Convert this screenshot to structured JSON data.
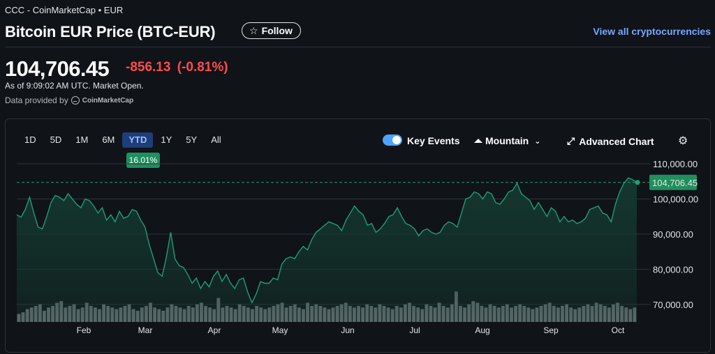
{
  "header": {
    "breadcrumb": "CCC - CoinMarketCap • EUR",
    "title": "Bitcoin EUR Price (BTC-EUR)",
    "follow_label": "Follow",
    "view_all": "View all cryptocurrencies"
  },
  "quote": {
    "price": "104,706.45",
    "change": "-856.13 (-0.81%)",
    "as_of": "As of 9:09:02 AM UTC. Market Open.",
    "provided_by": "Data provided by",
    "provider": "CoinMarketCap"
  },
  "toolbar": {
    "ranges": [
      "1D",
      "5D",
      "1M",
      "6M",
      "YTD",
      "1Y",
      "5Y",
      "All"
    ],
    "selected_range": "YTD",
    "ytd_change": "16.01%",
    "key_events_label": "Key Events",
    "key_events_on": true,
    "chart_type_label": "Mountain",
    "advanced_label": "Advanced Chart"
  },
  "colors": {
    "line": "#1f9e74",
    "area": "#143a30",
    "negative": "#ff4d4d",
    "link": "#7aa7ff",
    "last_price_badge": "#1f8f5e"
  },
  "chart_data": {
    "type": "area",
    "x_labels": [
      "Feb",
      "Mar",
      "Apr",
      "May",
      "Jun",
      "Jul",
      "Aug",
      "Sep",
      "Oct"
    ],
    "y_ticks": [
      "110,000.00",
      "100,000.00",
      "90,000.00",
      "80,000.00",
      "70,000.00"
    ],
    "ylim": [
      65000,
      112000
    ],
    "last_value_label": "104,706.45",
    "last_value": 104706.45,
    "series": [
      {
        "values": [
          95500,
          94800,
          97000,
          100500,
          96000,
          92000,
          91500,
          95000,
          99000,
          101000,
          100500,
          99500,
          101500,
          100000,
          98500,
          97500,
          100000,
          99500,
          98000,
          96000,
          97500,
          94000,
          95500,
          93500,
          96500,
          94500,
          95000,
          97000,
          96500,
          94000,
          92000,
          87000,
          83000,
          79000,
          78000,
          83500,
          90500,
          83000,
          81000,
          80500,
          78500,
          76000,
          77500,
          74500,
          76500,
          75000,
          78000,
          79500,
          76500,
          78500,
          76000,
          74500,
          77000,
          77500,
          73500,
          70500,
          73000,
          76500,
          76000,
          76000,
          77500,
          77000,
          81500,
          83000,
          83500,
          83000,
          85000,
          86500,
          85500,
          88500,
          90500,
          91500,
          92500,
          93500,
          93000,
          92500,
          91000,
          94000,
          96000,
          98000,
          96500,
          95500,
          92500,
          93000,
          90500,
          91500,
          93000,
          95000,
          95500,
          97500,
          95000,
          93000,
          92500,
          91500,
          89500,
          91000,
          91500,
          90500,
          90000,
          90500,
          92500,
          93500,
          93000,
          92000,
          96000,
          100000,
          100500,
          102000,
          101500,
          100000,
          102000,
          101500,
          99000,
          98500,
          100000,
          102000,
          102500,
          104500,
          101500,
          100500,
          99500,
          97000,
          99000,
          97000,
          95000,
          97500,
          96500,
          93500,
          95000,
          93500,
          94000,
          93000,
          93500,
          94500,
          97000,
          97500,
          98000,
          96000,
          95500,
          93500,
          98500,
          102000,
          104500,
          106000,
          105500,
          104706.45
        ]
      }
    ],
    "volume": [
      5,
      6,
      8,
      9,
      10,
      11,
      7,
      9,
      10,
      12,
      13,
      9,
      10,
      11,
      8,
      9,
      12,
      10,
      9,
      8,
      11,
      10,
      9,
      8,
      9,
      10,
      11,
      8,
      7,
      9,
      10,
      12,
      9,
      8,
      7,
      9,
      11,
      10,
      9,
      8,
      10,
      9,
      11,
      12,
      10,
      9,
      8,
      15,
      9,
      10,
      9,
      8,
      11,
      10,
      9,
      8,
      10,
      9,
      8,
      9,
      10,
      11,
      12,
      9,
      10,
      11,
      9,
      8,
      12,
      10,
      11,
      10,
      9,
      8,
      9,
      10,
      11,
      12,
      10,
      9,
      10,
      9,
      11,
      10,
      9,
      11,
      10,
      9,
      8,
      10,
      9,
      11,
      12,
      10,
      9,
      8,
      11,
      10,
      9,
      12,
      10,
      9,
      11,
      19,
      10,
      9,
      11,
      13,
      12,
      10,
      9,
      11,
      10,
      9,
      10,
      11,
      9,
      10,
      11,
      10,
      9,
      8,
      9,
      10,
      11,
      12,
      10,
      9,
      10,
      11,
      9,
      8,
      9,
      10,
      11,
      10,
      12,
      11,
      10,
      9,
      11,
      12,
      10,
      9,
      8,
      9
    ]
  }
}
